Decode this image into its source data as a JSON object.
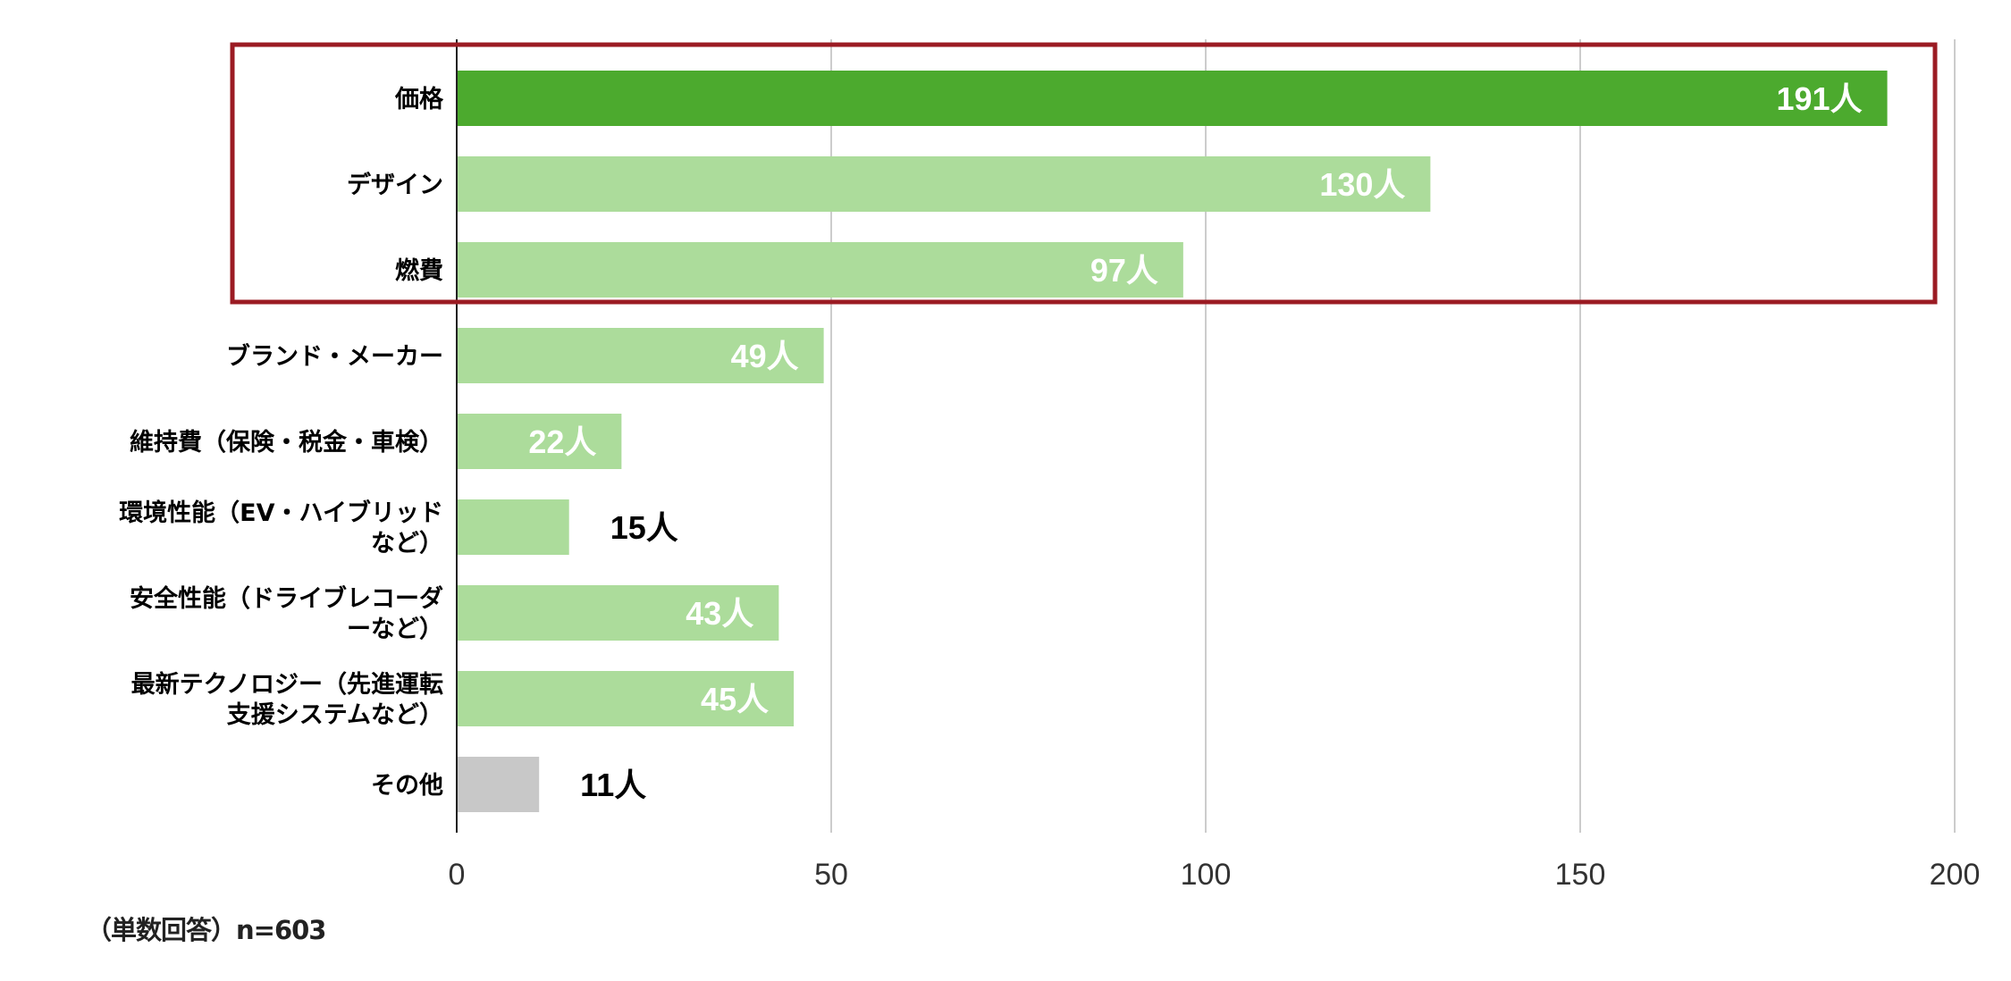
{
  "chart_data": {
    "type": "bar",
    "orientation": "horizontal",
    "categories": [
      [
        "価格"
      ],
      [
        "デザイン"
      ],
      [
        "燃費"
      ],
      [
        "ブランド・メーカー"
      ],
      [
        "維持費（保険・税金・車検）"
      ],
      [
        "環境性能（EV・ハイブリッド",
        "など）"
      ],
      [
        "安全性能（ドライブレコーダ",
        "ーなど）"
      ],
      [
        "最新テクノロジー（先進運転",
        "支援システムなど）"
      ],
      [
        "その他"
      ]
    ],
    "values": [
      191,
      130,
      97,
      49,
      22,
      15,
      43,
      45,
      11
    ],
    "value_labels": [
      "191人",
      "130人",
      "97人",
      "49人",
      "22人",
      "15人",
      "43人",
      "45人",
      "11人"
    ],
    "value_label_inside": [
      true,
      true,
      true,
      true,
      true,
      false,
      true,
      true,
      false
    ],
    "bar_colors": [
      "#4caa2e",
      "#acdc9b",
      "#acdc9b",
      "#acdc9b",
      "#acdc9b",
      "#acdc9b",
      "#acdc9b",
      "#acdc9b",
      "#c8c8c8"
    ],
    "xlim": [
      0,
      200
    ],
    "x_ticks": [
      0,
      50,
      100,
      150,
      200
    ],
    "grid": true,
    "highlight": {
      "categories": [
        "価格",
        "デザイン",
        "燃費"
      ],
      "color": "#9b1b23"
    }
  },
  "footnote": "（単数回答）n=603"
}
